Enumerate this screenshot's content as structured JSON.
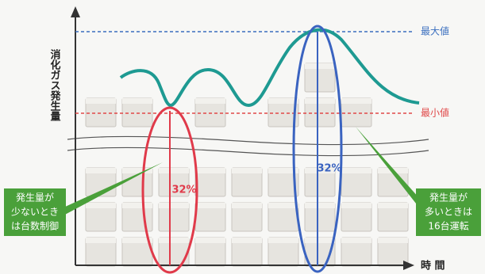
{
  "diagram": {
    "y_axis_label": "消化ガス発生量",
    "x_axis_label": "時 間",
    "max_label": "最大値",
    "min_label": "最小値",
    "red_percent": "32%",
    "blue_percent": "32%",
    "left_callout": [
      "発生量が",
      "少ないとき",
      "は台数制御"
    ],
    "right_callout": [
      "発生量が",
      "多いときは",
      "16台運転"
    ]
  }
}
